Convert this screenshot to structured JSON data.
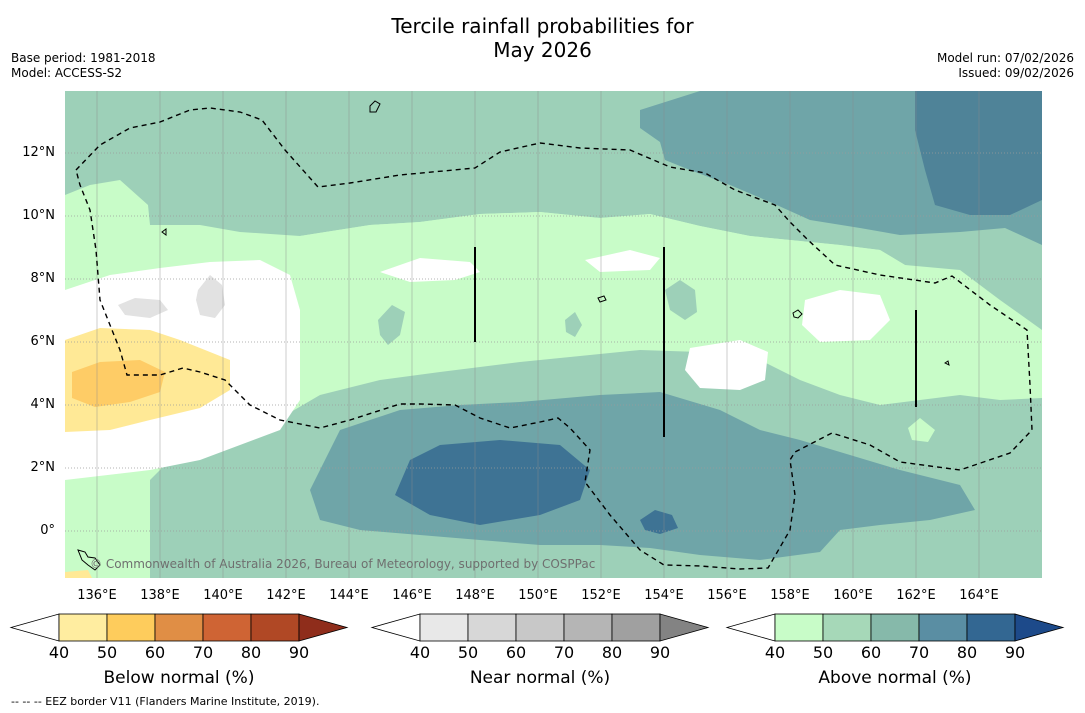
{
  "title": {
    "line1": "Tercile rainfall probabilities for",
    "line2": "May 2026"
  },
  "meta_left": {
    "base_period": "Base period: 1981-2018",
    "model": "Model: ACCESS-S2"
  },
  "meta_right": {
    "model_run": "Model run: 07/02/2026",
    "issued": "Issued: 09/02/2026"
  },
  "map": {
    "lat_labels": [
      "12°N",
      "10°N",
      "8°N",
      "6°N",
      "4°N",
      "2°N",
      "0°"
    ],
    "lon_labels": [
      "136°E",
      "138°E",
      "140°E",
      "142°E",
      "144°E",
      "146°E",
      "148°E",
      "150°E",
      "152°E",
      "154°E",
      "156°E",
      "158°E",
      "160°E",
      "162°E",
      "164°E"
    ],
    "credit": "© Commonwealth of Australia 2026, Bureau of Meteorology, supported by COSPPac"
  },
  "colorbars": [
    {
      "title": "Below normal (%)",
      "ticks": [
        "40",
        "50",
        "60",
        "70",
        "80",
        "90"
      ],
      "colors": [
        "#ffffff",
        "#ffeda0",
        "#fecc5c",
        "#e08e45",
        "#cf6434",
        "#b04825",
        "#8f2d1b"
      ]
    },
    {
      "title": "Near normal (%)",
      "ticks": [
        "40",
        "50",
        "60",
        "70",
        "80",
        "90"
      ],
      "colors": [
        "#ffffff",
        "#e8e8e8",
        "#d7d7d7",
        "#c8c8c8",
        "#b5b5b5",
        "#a0a0a0",
        "#838383"
      ]
    },
    {
      "title": "Above normal (%)",
      "ticks": [
        "40",
        "50",
        "60",
        "70",
        "80",
        "90"
      ],
      "colors": [
        "#ffffff",
        "#c8fcc8",
        "#a6d8b8",
        "#86b9aa",
        "#5a8ea3",
        "#336792",
        "#1d4a8a"
      ]
    }
  ],
  "footer": "--  --  -- EEZ border V11 (Flanders Marine Institute, 2019).",
  "palette": {
    "above_40": "#c8fcc8",
    "above_50": "#9dd0b8",
    "above_60": "#6fa5a8",
    "above_70": "#3e7394",
    "below_50": "#ffe996",
    "below_60": "#fecc66",
    "near_50": "#e2e2e2"
  }
}
